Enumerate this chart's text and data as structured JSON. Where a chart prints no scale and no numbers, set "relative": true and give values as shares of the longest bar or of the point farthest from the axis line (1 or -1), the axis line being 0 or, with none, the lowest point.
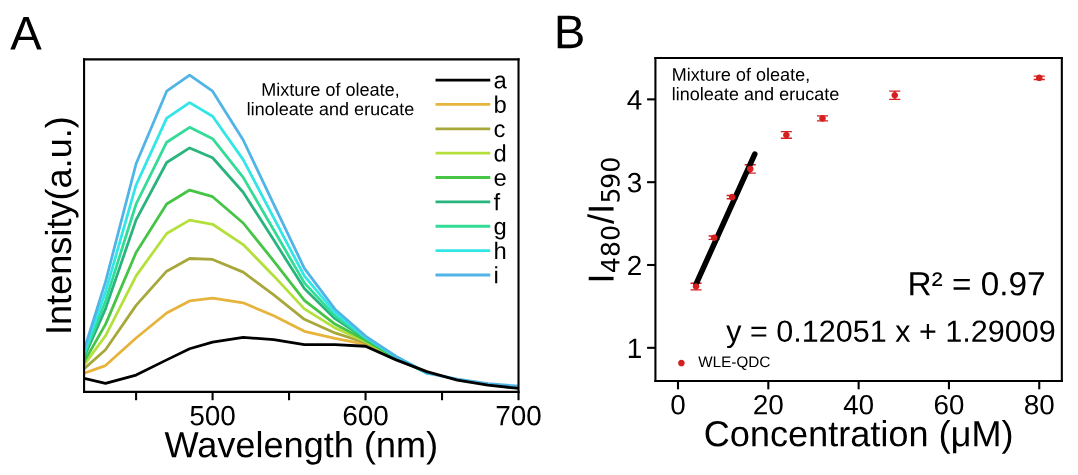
{
  "chart_data": [
    {
      "type": "line",
      "title": "A",
      "xlabel": "Wavelength (nm)",
      "ylabel": "Intensity(a.u.)",
      "relative": true,
      "legend": "top right",
      "marker": "none",
      "line_style": "solid",
      "grid": false,
      "tick_labels": "x",
      "xlim": [
        416,
        700
      ],
      "xticks": [
        {
          "value": 450,
          "label": null
        },
        500,
        {
          "value": 550,
          "label": null
        },
        600,
        {
          "value": 650,
          "label": null
        },
        700
      ],
      "x": [
        416,
        430,
        450,
        470,
        485,
        500,
        520,
        540,
        560,
        580,
        600,
        620,
        640,
        660,
        680,
        700
      ],
      "annotations": [
        "Mixture of oleate,\nlinoleate and erucate"
      ],
      "series": [
        {
          "name": "a",
          "color": "#000000",
          "values": [
            0.043,
            0.027,
            0.053,
            0.101,
            0.136,
            0.157,
            0.172,
            0.165,
            0.149,
            0.149,
            0.144,
            0.101,
            0.064,
            0.037,
            0.021,
            0.011
          ]
        },
        {
          "name": "b",
          "color": "#e6b43c",
          "values": [
            0.059,
            0.083,
            0.17,
            0.249,
            0.287,
            0.296,
            0.281,
            0.24,
            0.191,
            0.169,
            0.15,
            0.103,
            0.063,
            null,
            null,
            null
          ]
        },
        {
          "name": "c",
          "color": "#a8a83a",
          "values": [
            0.073,
            0.133,
            0.273,
            0.381,
            0.421,
            0.418,
            0.378,
            0.306,
            0.229,
            0.186,
            0.155,
            0.105,
            0.063,
            null,
            null,
            null
          ]
        },
        {
          "name": "d",
          "color": "#b4e03c",
          "values": [
            0.085,
            0.177,
            0.366,
            0.5,
            0.542,
            0.529,
            0.465,
            0.366,
            0.262,
            0.202,
            0.159,
            0.106,
            0.062,
            null,
            null,
            null
          ]
        },
        {
          "name": "e",
          "color": "#46c446",
          "values": [
            0.095,
            0.213,
            0.44,
            0.593,
            0.637,
            0.616,
            0.533,
            0.413,
            0.289,
            0.214,
            0.163,
            0.107,
            0.061,
            null,
            null,
            null
          ]
        },
        {
          "name": "f",
          "color": "#28b47c",
          "values": [
            0.109,
            0.262,
            0.543,
            0.724,
            0.77,
            0.739,
            0.63,
            0.479,
            0.326,
            0.231,
            0.168,
            0.109,
            0.06,
            null,
            null,
            null
          ]
        },
        {
          "name": "g",
          "color": "#32dc96",
          "values": [
            0.116,
            0.286,
            0.593,
            0.788,
            0.835,
            0.799,
            0.677,
            0.511,
            0.344,
            0.24,
            0.17,
            0.11,
            0.06,
            null,
            null,
            null
          ]
        },
        {
          "name": "h",
          "color": "#32e6e6",
          "values": [
            0.124,
            0.315,
            0.653,
            0.864,
            0.913,
            0.87,
            0.733,
            0.549,
            0.366,
            0.25,
            0.173,
            0.111,
            0.06,
            null,
            null,
            null
          ]
        },
        {
          "name": "i",
          "color": "#50b4e6",
          "values": [
            0.133,
            0.347,
            0.72,
            0.949,
            1.0,
            0.949,
            0.795,
            0.592,
            0.39,
            0.261,
            0.176,
            0.112,
            0.059,
            0.04,
            0.026,
            0.018
          ]
        }
      ]
    },
    {
      "type": "scatter",
      "title": "B",
      "xlabel": "Concentration (μM)",
      "ylabel": "I$_{480}$/I$_{590}$",
      "legend": "bottom left",
      "marker": "circle",
      "grid": false,
      "xlim": [
        -5,
        85
      ],
      "xticks": [
        0,
        20,
        40,
        60,
        80
      ],
      "ylim": [
        0.6,
        4.5
      ],
      "yticks": [
        1,
        2,
        3,
        4
      ],
      "annotations": [
        "Mixture of oleate,\nlinoleate and erucate",
        "R² = 0.97",
        "y = 0.12051 x + 1.29009"
      ],
      "series": [
        {
          "name": "WLE-QDC",
          "color": "#d42020",
          "x": [
            4,
            8,
            12,
            16,
            24,
            32,
            48,
            80
          ],
          "values": [
            1.74,
            2.33,
            2.82,
            3.16,
            3.57,
            3.77,
            4.05,
            4.26
          ],
          "errors": [
            0.04,
            0.02,
            0.02,
            0.05,
            0.04,
            0.03,
            0.05,
            0.02
          ]
        },
        {
          "type": "line",
          "marker": "none",
          "color": "#000000",
          "x": [
            4,
            17
          ],
          "values": [
            1.77,
            3.34
          ]
        }
      ]
    }
  ]
}
